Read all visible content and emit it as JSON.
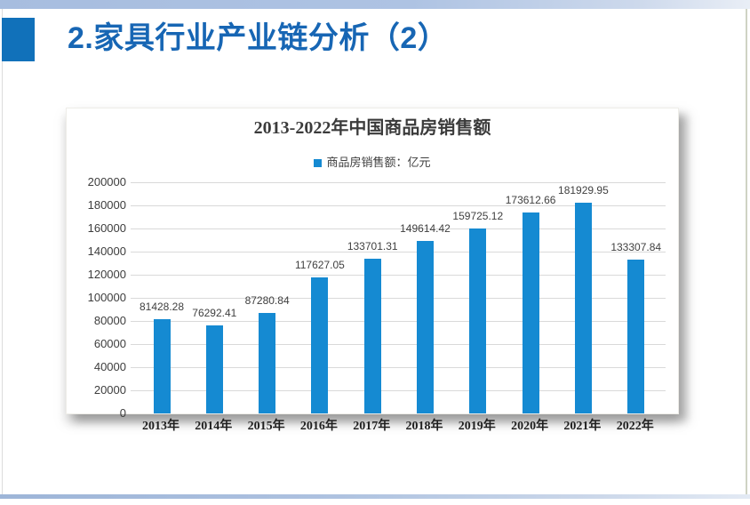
{
  "header": {
    "title": "2.家具行业产业链分析（2）"
  },
  "chart_data": {
    "type": "bar",
    "title": "2013-2022年中国商品房销售额",
    "legend_label": "商品房销售额：亿元",
    "legend_position": "top",
    "categories": [
      "2013年",
      "2014年",
      "2015年",
      "2016年",
      "2017年",
      "2018年",
      "2019年",
      "2020年",
      "2021年",
      "2022年"
    ],
    "series": [
      {
        "name": "商品房销售额：亿元",
        "values": [
          81428.28,
          76292.41,
          87280.84,
          117627.05,
          133701.31,
          149614.42,
          159725.12,
          173612.66,
          181929.95,
          133307.84
        ]
      }
    ],
    "data_labels": [
      "81428.28",
      "76292.41",
      "87280.84",
      "117627.05",
      "133701.31",
      "149614.42",
      "159725.12",
      "173612.66",
      "181929.95",
      "133307.84"
    ],
    "ylim": [
      0,
      200000
    ],
    "ytick_step": 20000,
    "yticks": [
      "200000",
      "180000",
      "160000",
      "140000",
      "120000",
      "100000",
      "80000",
      "60000",
      "40000",
      "20000",
      "0"
    ],
    "grid": true,
    "bar_color": "#158ad2"
  },
  "colors": {
    "accent_blue": "#1766b4",
    "square_blue": "#1171ba",
    "bar_blue": "#158ad2",
    "top_bar_blue": "#aec3e3",
    "grid_line": "#d9d9d9",
    "chart_text": "#404040"
  }
}
